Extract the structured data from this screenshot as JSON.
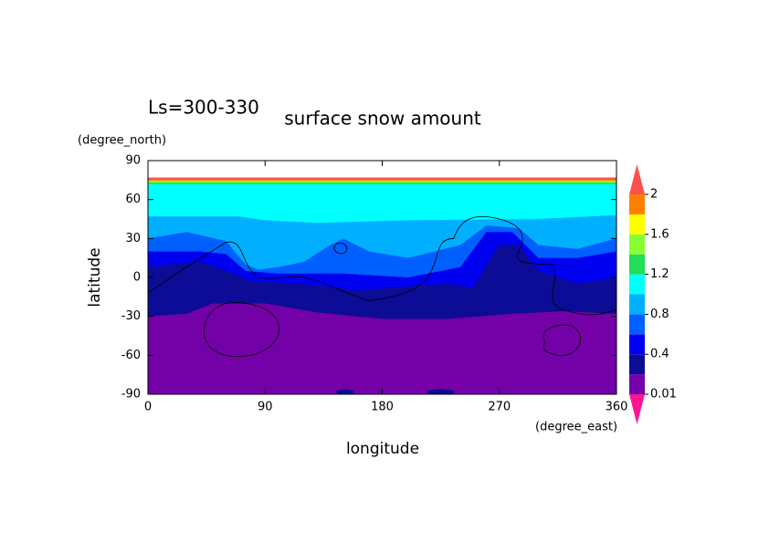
{
  "chart_data": {
    "type": "contour",
    "title": "surface snow amount",
    "subtitle": "Ls=300-330",
    "x_label": "longitude",
    "y_label": "latitude",
    "x_units": "(degree_east)",
    "y_units": "(degree_north)",
    "xlim": [
      0,
      360
    ],
    "xticks": [
      0,
      90,
      180,
      270,
      360
    ],
    "ylim": [
      -90,
      90
    ],
    "yticks": [
      90,
      60,
      30,
      0,
      -30,
      -60,
      -90
    ],
    "levels": [
      0.01,
      0.2,
      0.4,
      0.6,
      0.8,
      1.0,
      1.2,
      1.4,
      1.6,
      1.8,
      2
    ],
    "colorbar_ticks": [
      0.01,
      0.4,
      0.8,
      1.2,
      1.6,
      2
    ],
    "colors": [
      "#7400a8",
      "#0c0c96",
      "#0000f0",
      "#0060ff",
      "#00b0ff",
      "#00ffff",
      "#22dd55",
      "#88ff33",
      "#ffff00",
      "#ff8000"
    ],
    "under_color": "#ff1493",
    "over_color": "#ff5050"
  }
}
